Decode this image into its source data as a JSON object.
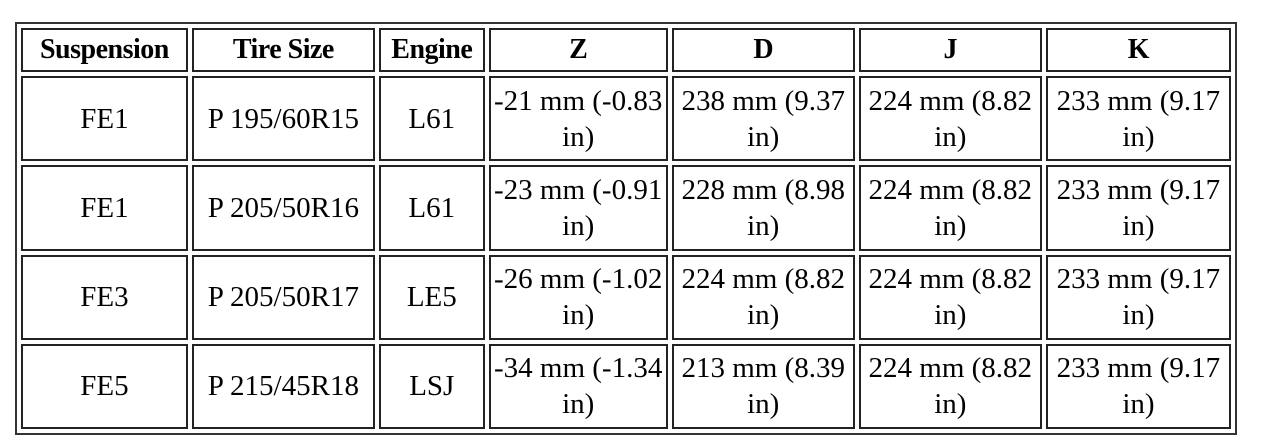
{
  "table": {
    "header": [
      "Suspension",
      "Tire Size",
      "Engine",
      "Z",
      "D",
      "J",
      "K"
    ],
    "rows": [
      [
        "FE1",
        "P 195/60R15",
        "L61",
        "-21 mm (-0.83 in)",
        "238 mm (9.37 in)",
        "224 mm (8.82 in)",
        "233 mm (9.17 in)"
      ],
      [
        "FE1",
        "P 205/50R16",
        "L61",
        "-23 mm (-0.91 in)",
        "228 mm (8.98 in)",
        "224 mm (8.82 in)",
        "233 mm (9.17 in)"
      ],
      [
        "FE3",
        "P 205/50R17",
        "LE5",
        "-26 mm (-1.02 in)",
        "224 mm (8.82 in)",
        "224 mm (8.82 in)",
        "233 mm (9.17 in)"
      ],
      [
        "FE5",
        "P 215/45R18",
        "LSJ",
        "-34 mm (-1.34 in)",
        "213 mm (8.39 in)",
        "224 mm (8.82 in)",
        "233 mm (9.17 in)"
      ]
    ]
  }
}
